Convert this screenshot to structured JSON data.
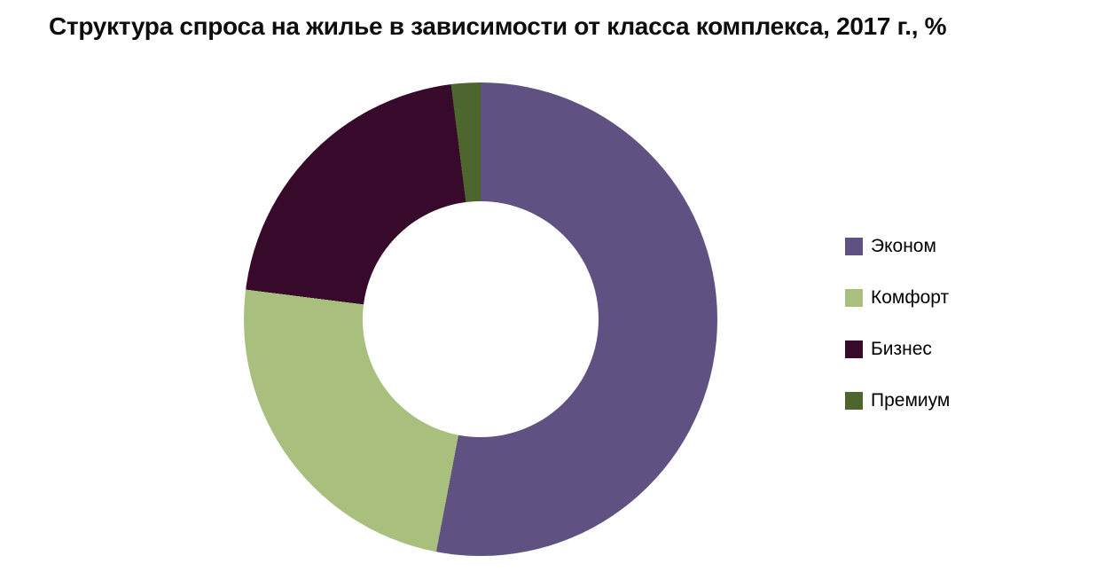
{
  "title": "Структура спроса на жилье в зависимости от класса комплекса, 2017 г., %",
  "chart_data": {
    "type": "pie",
    "subtype": "donut",
    "title": "Структура спроса на жилье в зависимости от класса комплекса, 2017 г., %",
    "categories": [
      "Эконом",
      "Комфорт",
      "Бизнес",
      "Премиум"
    ],
    "values": [
      53,
      24,
      21,
      2
    ],
    "unit": "%",
    "colors": [
      "#5f5282",
      "#a8bf7d",
      "#37092b",
      "#4d662e"
    ],
    "start_angle_deg": 0,
    "direction": "clockwise",
    "inner_radius_ratio": 0.5,
    "data_labels": false,
    "legend_position": "right"
  },
  "legend": {
    "items": [
      {
        "label": "Эконом",
        "color": "#5f5282"
      },
      {
        "label": "Комфорт",
        "color": "#a8bf7d"
      },
      {
        "label": "Бизнес",
        "color": "#37092b"
      },
      {
        "label": "Премиум",
        "color": "#4d662e"
      }
    ]
  }
}
